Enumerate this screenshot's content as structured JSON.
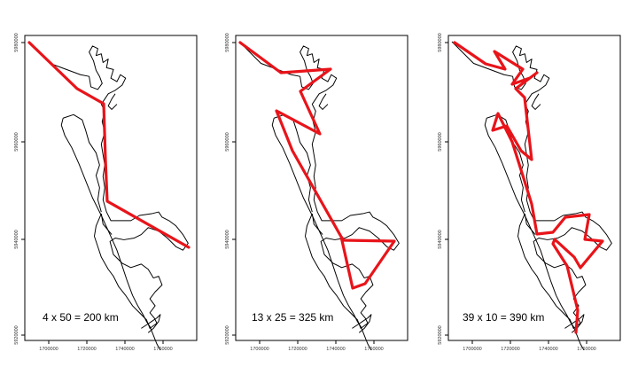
{
  "panels": [
    {
      "caption": "4 x 50 = 200 km",
      "x_ticks": [
        "1700000",
        "1720000",
        "1740000",
        "1760000"
      ],
      "y_ticks": [
        "5980000",
        "5960000",
        "5940000",
        "5920000"
      ]
    },
    {
      "caption": "13 x 25 = 325 km",
      "x_ticks": [
        "1700000",
        "1720000",
        "1740000",
        "1760000"
      ],
      "y_ticks": [
        "5980000",
        "5960000",
        "5940000",
        "5920000"
      ]
    },
    {
      "caption": "39 x 10 = 390 km",
      "x_ticks": [
        "1700000",
        "1720000",
        "1740000",
        "1760000"
      ],
      "y_ticks": [
        "5980000",
        "5960000",
        "5940000",
        "5920000"
      ]
    }
  ],
  "colors": {
    "route": "#e8141a",
    "coastline": "#000000"
  }
}
